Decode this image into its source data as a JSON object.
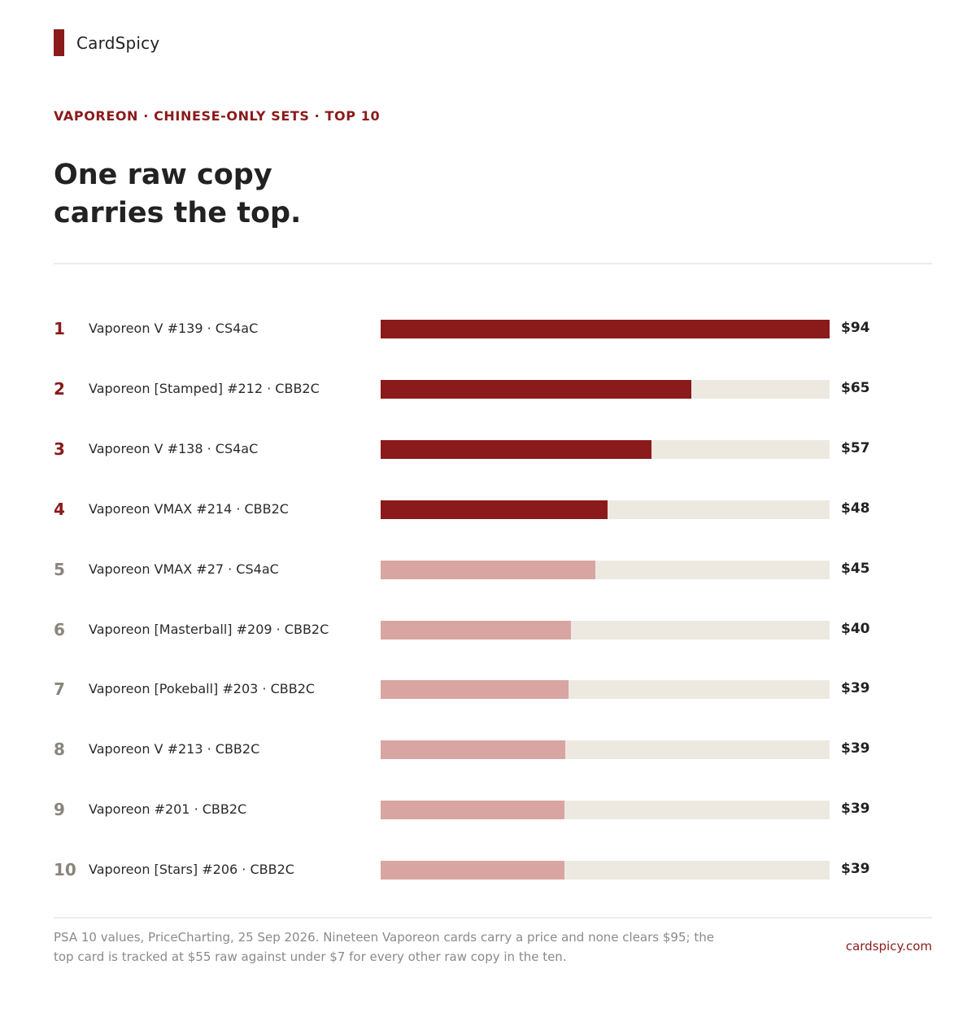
{
  "brand": {
    "name": "CardSpicy",
    "color": "#8b1a1a"
  },
  "kicker": "VAPOREON · CHINESE-ONLY SETS · TOP 10",
  "headline": {
    "line1": "One raw copy",
    "line2": "carries the top."
  },
  "colors": {
    "highlight": "#8b1a1a",
    "muted": "#d8a5a3",
    "track": "#ede9e1",
    "rank_highlight": "#8b1a1a",
    "rank_muted": "#8a857c"
  },
  "chart_data": {
    "type": "bar",
    "orientation": "horizontal",
    "xlim": [
      0,
      94
    ],
    "highlight_top_n": 4,
    "categories": [
      "Vaporeon V #139 · CS4aC",
      "Vaporeon [Stamped] #212 · CBB2C",
      "Vaporeon V #138 · CS4aC",
      "Vaporeon VMAX #214 · CBB2C",
      "Vaporeon VMAX #27 · CS4aC",
      "Vaporeon [Masterball] #209 · CBB2C",
      "Vaporeon [Pokeball] #203 · CBB2C",
      "Vaporeon V #213 · CBB2C",
      "Vaporeon #201 · CBB2C",
      "Vaporeon [Stars] #206 · CBB2C"
    ],
    "ranks": [
      "1",
      "2",
      "3",
      "4",
      "5",
      "6",
      "7",
      "8",
      "9",
      "10"
    ],
    "values": [
      94,
      65,
      56.7,
      47.5,
      45,
      39.9,
      39.3,
      38.7,
      38.5,
      38.5
    ],
    "value_labels": [
      "$94",
      "$65",
      "$57",
      "$48",
      "$45",
      "$40",
      "$39",
      "$39",
      "$39",
      "$39"
    ]
  },
  "footer": {
    "note": "PSA 10 values, PriceCharting, 25 Sep 2026. Nineteen Vaporeon cards carry a price and none clears $95; the top card is tracked at $55 raw against under $7 for every other raw copy in the ten.",
    "site": "cardspicy.com"
  }
}
